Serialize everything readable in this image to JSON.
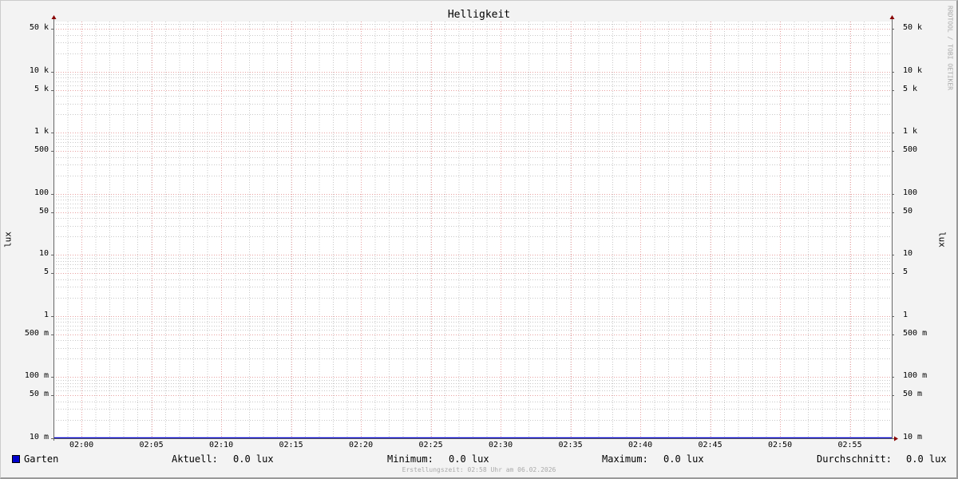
{
  "chart_data": {
    "type": "line",
    "title": "Helligkeit",
    "ylabel": "lux",
    "ylabel_right": "lux",
    "yscale": "log",
    "ylim": [
      0.01,
      66000
    ],
    "xlim": [
      "01:58",
      "02:58"
    ],
    "x_ticks": [
      "02:00",
      "02:05",
      "02:10",
      "02:15",
      "02:20",
      "02:25",
      "02:30",
      "02:35",
      "02:40",
      "02:45",
      "02:50",
      "02:55"
    ],
    "y_ticks": [
      {
        "value": 50000,
        "label": "50 k"
      },
      {
        "value": 10000,
        "label": "10 k"
      },
      {
        "value": 5000,
        "label": "5 k"
      },
      {
        "value": 1000,
        "label": "1 k"
      },
      {
        "value": 500,
        "label": "500"
      },
      {
        "value": 100,
        "label": "100"
      },
      {
        "value": 50,
        "label": "50"
      },
      {
        "value": 10,
        "label": "10"
      },
      {
        "value": 5,
        "label": "5"
      },
      {
        "value": 1,
        "label": "1"
      },
      {
        "value": 0.5,
        "label": "500 m"
      },
      {
        "value": 0.1,
        "label": "100 m"
      },
      {
        "value": 0.05,
        "label": "50 m"
      },
      {
        "value": 0.01,
        "label": "10 m"
      }
    ],
    "grid": true,
    "series": [
      {
        "name": "Garten",
        "color": "#0000cc",
        "x": [
          "01:58",
          "02:58"
        ],
        "values": [
          0.0,
          0.0
        ]
      }
    ],
    "legend_placement": "bottom"
  },
  "legend": {
    "series_name": "Garten",
    "current_label": "Aktuell:",
    "current_value": "0.0 lux",
    "min_label": "Minimum:",
    "min_value": "0.0 lux",
    "max_label": "Maximum:",
    "max_value": "0.0 lux",
    "avg_label": "Durchschnitt:",
    "avg_value": "0.0 lux"
  },
  "footer": "Erstellungszeit: 02:58 Uhr am 06.02.2026",
  "watermark": "RRDTOOL / TOBI OETIKER",
  "colors": {
    "major_grid": "#e8a0a0",
    "minor_grid": "#c8c8c8",
    "axis": "#666666",
    "arrow": "#880000",
    "series": "#0000cc"
  }
}
